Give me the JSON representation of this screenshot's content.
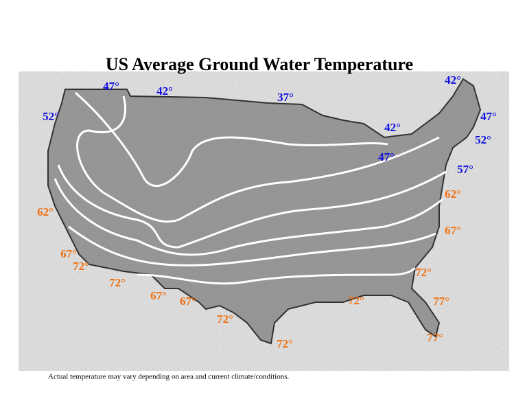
{
  "title": "US Average Ground Water Temperature",
  "footnote": "Actual temperature may vary depending on area and current climate/conditions.",
  "isotherm_labels": [
    {
      "text": "47°",
      "color": "#1010e0"
    },
    {
      "text": "42°",
      "color": "#1010e0"
    },
    {
      "text": "37°",
      "color": "#1010e0"
    },
    {
      "text": "42°",
      "color": "#1010e0"
    },
    {
      "text": "52°",
      "color": "#1010e0"
    },
    {
      "text": "47°",
      "color": "#1010e0"
    },
    {
      "text": "42°",
      "color": "#1010e0"
    },
    {
      "text": "52°",
      "color": "#1010e0"
    },
    {
      "text": "47°",
      "color": "#1010e0"
    },
    {
      "text": "57°",
      "color": "#1010e0"
    },
    {
      "text": "62°",
      "color": "#f07010"
    },
    {
      "text": "62°",
      "color": "#f07010"
    },
    {
      "text": "67°",
      "color": "#f07010"
    },
    {
      "text": "67°",
      "color": "#f07010"
    },
    {
      "text": "72°",
      "color": "#f07010"
    },
    {
      "text": "72°",
      "color": "#f07010"
    },
    {
      "text": "72°",
      "color": "#f07010"
    },
    {
      "text": "67°",
      "color": "#f07010"
    },
    {
      "text": "67°",
      "color": "#f07010"
    },
    {
      "text": "72°",
      "color": "#f07010"
    },
    {
      "text": "77°",
      "color": "#f07010"
    },
    {
      "text": "72°",
      "color": "#f07010"
    },
    {
      "text": "72°",
      "color": "#f07010"
    },
    {
      "text": "77°",
      "color": "#f07010"
    }
  ]
}
